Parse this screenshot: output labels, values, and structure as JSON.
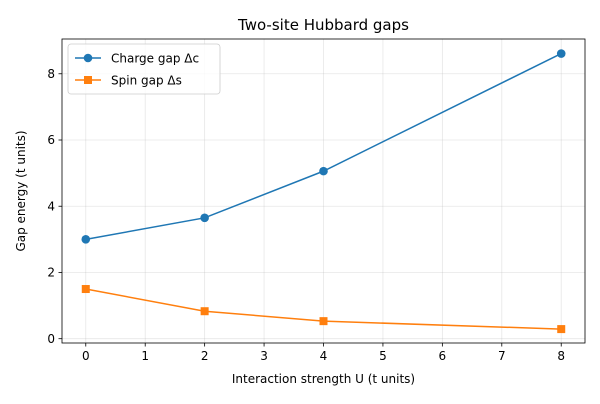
{
  "chart_data": {
    "type": "line",
    "title": "Two-site Hubbard gaps",
    "xlabel": "Interaction strength U (t units)",
    "ylabel": "Gap energy (t units)",
    "xlim": [
      -0.4,
      8.4
    ],
    "ylim": [
      -0.13,
      9.05
    ],
    "xticks": [
      0,
      1,
      2,
      3,
      4,
      5,
      6,
      7,
      8
    ],
    "yticks": [
      0,
      2,
      4,
      6,
      8
    ],
    "grid": true,
    "legend_position": "top-left",
    "series": [
      {
        "name": "Charge gap Δc",
        "color": "#1f77b4",
        "marker": "circle",
        "x": [
          0,
          2,
          4,
          8
        ],
        "y": [
          3.0,
          3.65,
          5.06,
          8.61
        ]
      },
      {
        "name": "Spin gap Δs",
        "color": "#ff7f0e",
        "marker": "square",
        "x": [
          0,
          2,
          4,
          8
        ],
        "y": [
          1.5,
          0.83,
          0.53,
          0.29
        ]
      }
    ]
  }
}
